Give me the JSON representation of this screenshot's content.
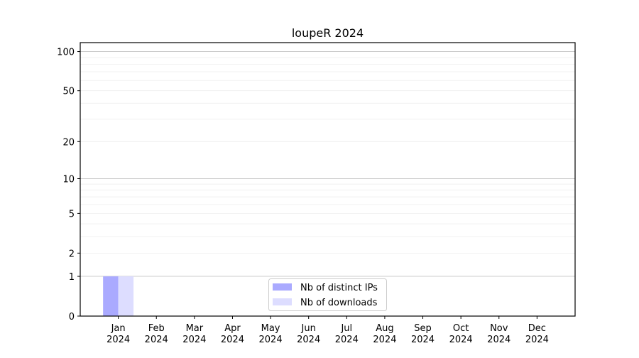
{
  "chart_data": {
    "type": "bar",
    "title": "loupeR 2024",
    "xlabel": "",
    "ylabel": "",
    "y_scale": "log(1+y)",
    "ylim": [
      0,
      117
    ],
    "y_ticks": [
      0,
      1,
      2,
      5,
      10,
      20,
      50,
      100
    ],
    "grid": true,
    "legend_position": "bottom-center",
    "categories": [
      [
        "Jan",
        "2024"
      ],
      [
        "Feb",
        "2024"
      ],
      [
        "Mar",
        "2024"
      ],
      [
        "Apr",
        "2024"
      ],
      [
        "May",
        "2024"
      ],
      [
        "Jun",
        "2024"
      ],
      [
        "Jul",
        "2024"
      ],
      [
        "Aug",
        "2024"
      ],
      [
        "Sep",
        "2024"
      ],
      [
        "Oct",
        "2024"
      ],
      [
        "Nov",
        "2024"
      ],
      [
        "Dec",
        "2024"
      ]
    ],
    "series": [
      {
        "name": "Nb of distinct IPs",
        "color": "#aaaaff",
        "values": [
          1,
          0,
          0,
          0,
          0,
          0,
          0,
          0,
          0,
          0,
          0,
          0
        ]
      },
      {
        "name": "Nb of downloads",
        "color": "#ddddff",
        "values": [
          1,
          0,
          0,
          0,
          0,
          0,
          0,
          0,
          0,
          0,
          0,
          0
        ]
      }
    ]
  }
}
